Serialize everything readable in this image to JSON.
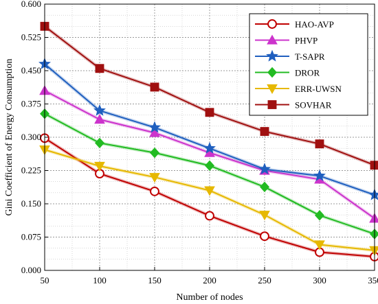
{
  "chart_data": {
    "type": "line",
    "x": [
      50,
      100,
      150,
      200,
      250,
      300,
      350
    ],
    "xlabel": "Number of nodes",
    "ylabel": "Gini Coefficient of Energy Consumption",
    "xlim": [
      50,
      350
    ],
    "ylim": [
      0,
      0.6
    ],
    "x_ticks": [
      "50",
      "100",
      "150",
      "200",
      "250",
      "300",
      "350"
    ],
    "y_ticks": [
      {
        "value": 0.0,
        "label": "0.000"
      },
      {
        "value": 0.075,
        "label": "0.075"
      },
      {
        "value": 0.15,
        "label": "0.150"
      },
      {
        "value": 0.225,
        "label": "0.225"
      },
      {
        "value": 0.3,
        "label": "0.300"
      },
      {
        "value": 0.375,
        "label": "0.375"
      },
      {
        "value": 0.45,
        "label": "0.450"
      },
      {
        "value": 0.525,
        "label": "0.525"
      },
      {
        "value": 0.6,
        "label": "0.600"
      }
    ],
    "grid": true,
    "legend_position": "top-right",
    "series": [
      {
        "name": "HAO-AVP",
        "color": "#c00000",
        "marker": "circle",
        "values": [
          0.298,
          0.218,
          0.178,
          0.123,
          0.077,
          0.041,
          0.031
        ]
      },
      {
        "name": "PHVP",
        "color": "#cc33cc",
        "marker": "triangle-up",
        "values": [
          0.405,
          0.34,
          0.31,
          0.265,
          0.225,
          0.205,
          0.117
        ]
      },
      {
        "name": "T-SAPR",
        "color": "#1f5fbf",
        "marker": "star",
        "values": [
          0.465,
          0.36,
          0.322,
          0.275,
          0.228,
          0.213,
          0.17
        ]
      },
      {
        "name": "DROR",
        "color": "#22bb22",
        "marker": "diamond",
        "values": [
          0.353,
          0.287,
          0.265,
          0.236,
          0.188,
          0.124,
          0.082
        ]
      },
      {
        "name": "ERR-UWSN",
        "color": "#e6b800",
        "marker": "triangle-down",
        "values": [
          0.272,
          0.235,
          0.21,
          0.18,
          0.125,
          0.058,
          0.045
        ]
      },
      {
        "name": "SOVHAR",
        "color": "#a01010",
        "marker": "square",
        "values": [
          0.55,
          0.455,
          0.413,
          0.356,
          0.313,
          0.285,
          0.237
        ]
      }
    ]
  }
}
